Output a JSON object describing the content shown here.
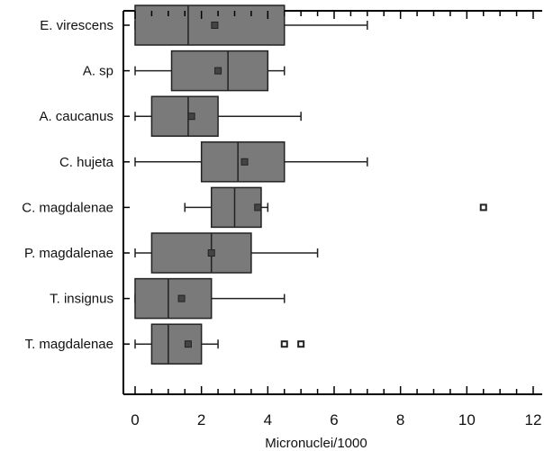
{
  "chart_data": {
    "type": "boxplot",
    "orientation": "horizontal",
    "title": "",
    "xlabel": "Micronuclei/1000",
    "ylabel": "",
    "xlim": [
      0,
      12
    ],
    "xticks": [
      0,
      2,
      4,
      6,
      8,
      10,
      12
    ],
    "xtick_labels": [
      "0",
      "2",
      "4",
      "6",
      "8",
      "10",
      "12"
    ],
    "grid": false,
    "legend": "none",
    "box_color": "#7a7a7a",
    "categories": [
      "E. virescens",
      "A. sp",
      "A. caucanus",
      "C. hujeta",
      "C. magdalenae",
      "P. magdalenae",
      "T. insignus",
      "T. magdalenae"
    ],
    "series": [
      {
        "label": "E. virescens",
        "whisker_low": 0,
        "q1": 0,
        "median": 1.6,
        "q3": 4.5,
        "whisker_high": 7,
        "mean": 2.4,
        "outliers": []
      },
      {
        "label": "A. sp",
        "whisker_low": 0,
        "q1": 1.1,
        "median": 2.8,
        "q3": 4.0,
        "whisker_high": 4.5,
        "mean": 2.5,
        "outliers": []
      },
      {
        "label": "A. caucanus",
        "whisker_low": 0,
        "q1": 0.5,
        "median": 1.6,
        "q3": 2.5,
        "whisker_high": 5,
        "mean": 1.7,
        "outliers": []
      },
      {
        "label": "C. hujeta",
        "whisker_low": 0,
        "q1": 2.0,
        "median": 3.1,
        "q3": 4.5,
        "whisker_high": 7,
        "mean": 3.3,
        "outliers": []
      },
      {
        "label": "C. magdalenae",
        "whisker_low": 1.5,
        "q1": 2.3,
        "median": 3.0,
        "q3": 3.8,
        "whisker_high": 4.0,
        "mean": 3.7,
        "outliers": [
          10.5
        ]
      },
      {
        "label": "P. magdalenae",
        "whisker_low": 0,
        "q1": 0.5,
        "median": 2.3,
        "q3": 3.5,
        "whisker_high": 5.5,
        "mean": 2.3,
        "outliers": []
      },
      {
        "label": "T. insignus",
        "whisker_low": 0,
        "q1": 0,
        "median": 1.0,
        "q3": 2.3,
        "whisker_high": 4.5,
        "mean": 1.4,
        "outliers": []
      },
      {
        "label": "T. magdalenae",
        "whisker_low": 0,
        "q1": 0.5,
        "median": 1.0,
        "q3": 2.0,
        "whisker_high": 2.5,
        "mean": 1.6,
        "outliers": [
          4.5,
          5.0
        ]
      }
    ]
  }
}
